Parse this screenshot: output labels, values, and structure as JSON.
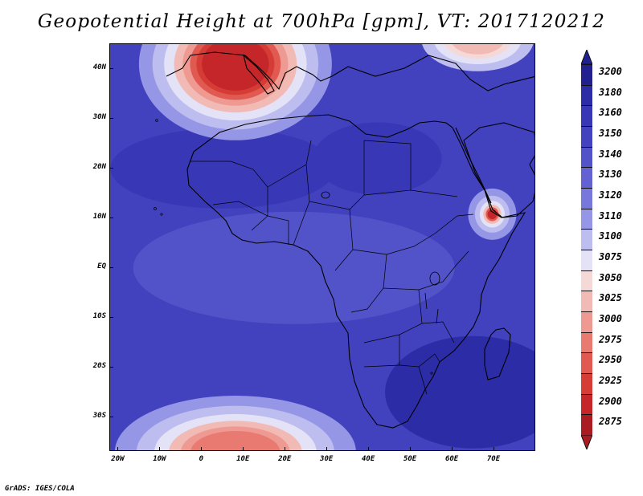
{
  "title": "Geopotential Height at 700hPa [gpm], VT: 2017120212",
  "footer": "GrADS: IGES/COLA",
  "axes": {
    "lat_labels": [
      {
        "text": "40N",
        "lat": 40
      },
      {
        "text": "30N",
        "lat": 30
      },
      {
        "text": "20N",
        "lat": 20
      },
      {
        "text": "10N",
        "lat": 10
      },
      {
        "text": "EQ",
        "lat": 0
      },
      {
        "text": "10S",
        "lat": -10
      },
      {
        "text": "20S",
        "lat": -20
      },
      {
        "text": "30S",
        "lat": -30
      }
    ],
    "lon_labels": [
      {
        "text": "20W",
        "lon": -20
      },
      {
        "text": "10W",
        "lon": -10
      },
      {
        "text": "0",
        "lon": 0
      },
      {
        "text": "10E",
        "lon": 10
      },
      {
        "text": "20E",
        "lon": 20
      },
      {
        "text": "30E",
        "lon": 30
      },
      {
        "text": "40E",
        "lon": 40
      },
      {
        "text": "50E",
        "lon": 50
      },
      {
        "text": "60E",
        "lon": 60
      },
      {
        "text": "70E",
        "lon": 70
      }
    ],
    "lon_range": [
      -22,
      80
    ],
    "lat_range": [
      -37,
      45
    ]
  },
  "colorbar": {
    "labels": [
      "3200",
      "3180",
      "3160",
      "3150",
      "3140",
      "3130",
      "3120",
      "3110",
      "3100",
      "3075",
      "3050",
      "3025",
      "3000",
      "2975",
      "2950",
      "2925",
      "2900",
      "2875"
    ],
    "colors": [
      "#22208e",
      "#2c2ca6",
      "#3838b6",
      "#4343c0",
      "#5252c9",
      "#6262d2",
      "#7878dc",
      "#9696e6",
      "#bdbdf0",
      "#e4e2f6",
      "#f4d9d6",
      "#f2bab4",
      "#ee9a92",
      "#e87a72",
      "#e05a52",
      "#d63c36",
      "#c4262a",
      "#a81c22"
    ],
    "top_arrow_color": "#22208e",
    "bottom_arrow_color": "#a81c22"
  },
  "map_fields": {
    "background_color": "#4242bf",
    "features": [
      {
        "name": "mediterranean-low",
        "lon": 8,
        "lat": 41,
        "level_colors": [
          "#9696e6",
          "#bdbdf0",
          "#e4e2f6",
          "#f2bab4",
          "#ee9a92",
          "#e05a52",
          "#d63c36",
          "#c4262a"
        ]
      },
      {
        "name": "southern-low",
        "lon": 8,
        "lat": -37,
        "level_colors": [
          "#9696e6",
          "#bdbdf0",
          "#e4e2f6",
          "#f2bab4",
          "#ee9a92",
          "#e87a72"
        ]
      },
      {
        "name": "northeast-low",
        "lon": 66,
        "lat": 46,
        "level_colors": [
          "#bdbdf0",
          "#e4e2f6",
          "#f4d9d6",
          "#f2bab4"
        ]
      },
      {
        "name": "indian-ocean-cyclone",
        "lon": 69.5,
        "lat": 10.8,
        "level_colors": [
          "#9696e6",
          "#bdbdf0",
          "#e4e2f6",
          "#f2bab4",
          "#e05a52",
          "#c4262a"
        ]
      },
      {
        "name": "sahara-high",
        "lon": 5,
        "lat": 20,
        "level_colors": [
          "#3838b6"
        ]
      },
      {
        "name": "arabia-high",
        "lon": 42,
        "lat": 22,
        "level_colors": [
          "#3838b6"
        ]
      },
      {
        "name": "southeast-high",
        "lon": 65,
        "lat": -25,
        "level_colors": [
          "#2c2ca6"
        ]
      },
      {
        "name": "central-trough",
        "lon": 22,
        "lat": 0,
        "level_colors": [
          "#5252c9"
        ]
      }
    ]
  }
}
